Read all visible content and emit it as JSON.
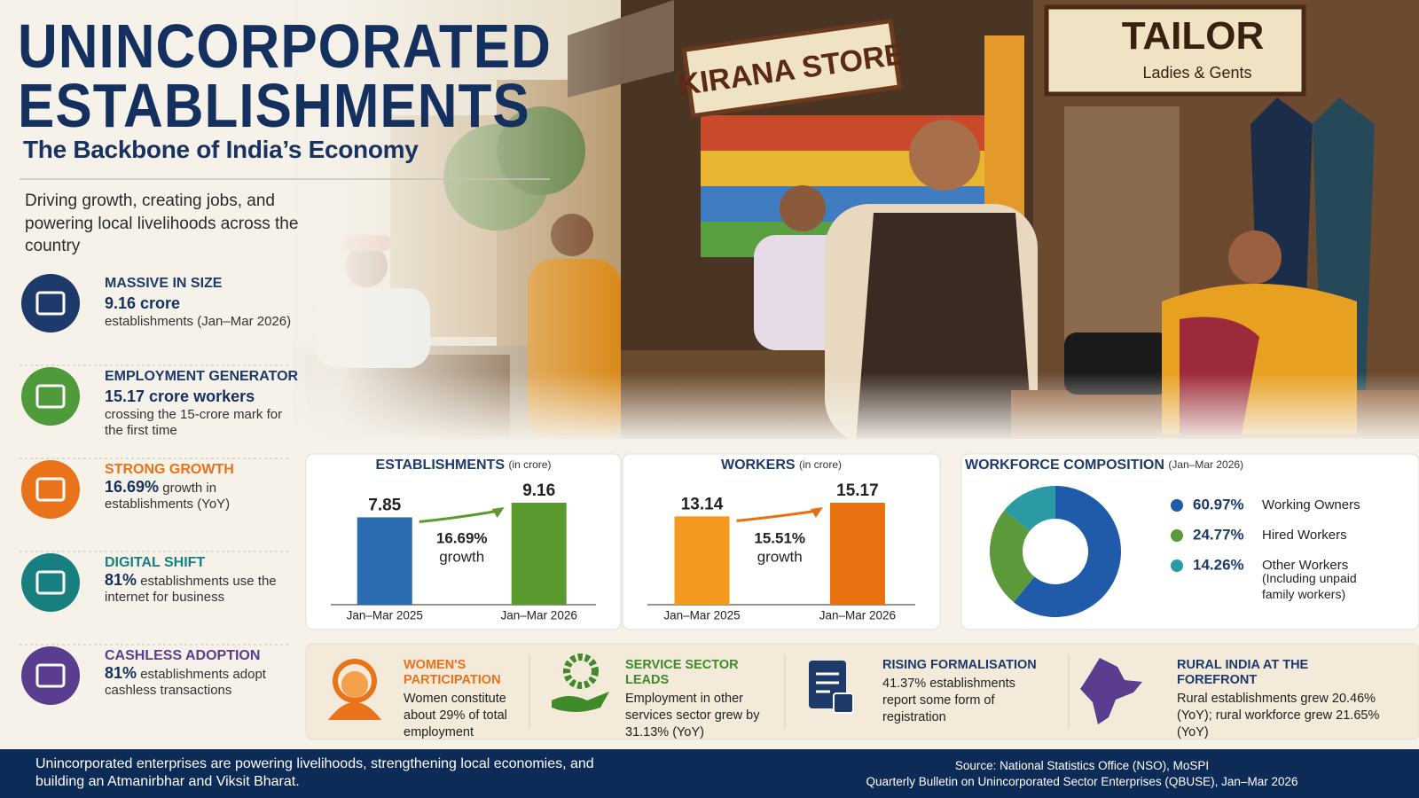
{
  "header": {
    "title_lines": [
      "UNINCORPORATED",
      "ESTABLISHMENTS"
    ],
    "subtitle": "The Backbone of India’s Economy",
    "intro": "Driving growth, creating jobs, and powering local livelihoods across the country"
  },
  "scene": {
    "signs": [
      "KIRANA STORE",
      "TAILOR",
      "Ladies & Gents"
    ]
  },
  "highlights": [
    {
      "heading": "MASSIVE IN SIZE",
      "value": "9.16 crore",
      "text": "establishments (Jan–Mar 2026)",
      "color": "#1d3a6a"
    },
    {
      "heading": "EMPLOYMENT GENERATOR",
      "value": "15.17 crore workers",
      "text": "crossing the 15-crore mark for the first time",
      "color": "#4f9a3a"
    },
    {
      "heading": "STRONG GROWTH",
      "value": "16.69%",
      "text": "growth in establishments (YoY)",
      "color": "#e8731b"
    },
    {
      "heading": "DIGITAL SHIFT",
      "value": "81%",
      "text": "establishments use the internet for business",
      "color": "#177f80"
    },
    {
      "heading": "CASHLESS ADOPTION",
      "value": "81%",
      "text": "establishments adopt cashless transactions",
      "color": "#5a3d8e"
    }
  ],
  "chart_data": [
    {
      "type": "bar",
      "title": "ESTABLISHMENTS",
      "subtitle": "(in crore)",
      "categories": [
        "Jan–Mar 2025",
        "Jan–Mar 2026"
      ],
      "values": [
        7.85,
        9.16
      ],
      "colors": [
        "#2b6cb0",
        "#5b9a2f"
      ],
      "annotations": [
        "16.69%",
        "growth"
      ]
    },
    {
      "type": "bar",
      "title": "WORKERS",
      "subtitle": "(in crore)",
      "categories": [
        "Jan–Mar 2025",
        "Jan–Mar 2026"
      ],
      "values": [
        13.14,
        15.17
      ],
      "colors": [
        "#f39a1e",
        "#e8700f"
      ],
      "annotations": [
        "15.51%",
        "growth"
      ]
    },
    {
      "type": "pie",
      "donut": true,
      "title": "WORKFORCE COMPOSITION",
      "subtitle": "(Jan–Mar 2026)",
      "categories": [
        "Working Owners",
        "Hired Workers",
        "Other Workers"
      ],
      "category_note": "(Including unpaid family workers)",
      "values": [
        60.97,
        24.77,
        14.26
      ],
      "value_labels": [
        "60.97%",
        "24.77%",
        "14.26%"
      ],
      "colors": [
        "#1f5ba8",
        "#5a9a3a",
        "#2a9aa5"
      ]
    }
  ],
  "stats": [
    {
      "heading": "WOMEN'S PARTICIPATION",
      "text": "Women constitute about 29% of total employment",
      "color": "#e8731b"
    },
    {
      "heading": "SERVICE SECTOR LEADS",
      "text": "Employment in other services sector grew by 31.13% (YoY)",
      "color": "#3f8a2a"
    },
    {
      "heading": "RISING FORMALISATION",
      "text": "41.37% establishments report some form of registration",
      "color": "#1d3a6a"
    },
    {
      "heading": "RURAL INDIA AT THE FOREFRONT",
      "text": "Rural establishments grew 20.46% (YoY); rural workforce grew 21.65% (YoY)",
      "color": "#1d3a6a"
    }
  ],
  "footer": {
    "message": "Unincorporated enterprises are powering livelihoods, strengthening local economies, and building an Atmanirbhar and Viksit Bharat.",
    "source": "Source: National Statistics Office (NSO), MoSPI",
    "publication": "Quarterly Bulletin on Unincorporated Sector Enterprises (QBUSE), Jan–Mar 2026"
  }
}
